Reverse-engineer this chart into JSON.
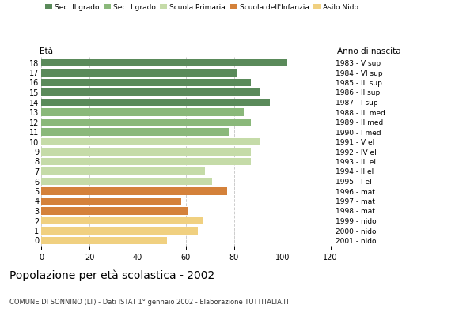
{
  "ages": [
    18,
    17,
    16,
    15,
    14,
    13,
    12,
    11,
    10,
    9,
    8,
    7,
    6,
    5,
    4,
    3,
    2,
    1,
    0
  ],
  "values": [
    102,
    81,
    87,
    91,
    95,
    84,
    87,
    78,
    91,
    87,
    87,
    68,
    71,
    77,
    58,
    61,
    67,
    65,
    52
  ],
  "right_labels": [
    "1983 - V sup",
    "1984 - VI sup",
    "1985 - III sup",
    "1986 - II sup",
    "1987 - I sup",
    "1988 - III med",
    "1989 - II med",
    "1990 - I med",
    "1991 - V el",
    "1992 - IV el",
    "1993 - III el",
    "1994 - II el",
    "1995 - I el",
    "1996 - mat",
    "1997 - mat",
    "1998 - mat",
    "1999 - nido",
    "2000 - nido",
    "2001 - nido"
  ],
  "bar_colors": [
    "#5a8a5a",
    "#5a8a5a",
    "#5a8a5a",
    "#5a8a5a",
    "#5a8a5a",
    "#8ab87a",
    "#8ab87a",
    "#8ab87a",
    "#c5dba8",
    "#c5dba8",
    "#c5dba8",
    "#c5dba8",
    "#c5dba8",
    "#d4813a",
    "#d4813a",
    "#d4813a",
    "#f0d080",
    "#f0d080",
    "#f0d080"
  ],
  "legend_labels": [
    "Sec. II grado",
    "Sec. I grado",
    "Scuola Primaria",
    "Scuola dell'Infanzia",
    "Asilo Nido"
  ],
  "legend_colors": [
    "#5a8a5a",
    "#8ab87a",
    "#c5dba8",
    "#d4813a",
    "#f0d080"
  ],
  "title1": "Popolazione per età scolastica - 2002",
  "title2": "COMUNE DI SONNINO (LT) - Dati ISTAT 1° gennaio 2002 - Elaborazione TUTTITALIA.IT",
  "label_eta": "Età",
  "label_anno": "Anno di nascita",
  "xlim": [
    0,
    120
  ],
  "xticks": [
    0,
    20,
    40,
    60,
    80,
    100,
    120
  ],
  "background_color": "#ffffff",
  "grid_color": "#cccccc"
}
